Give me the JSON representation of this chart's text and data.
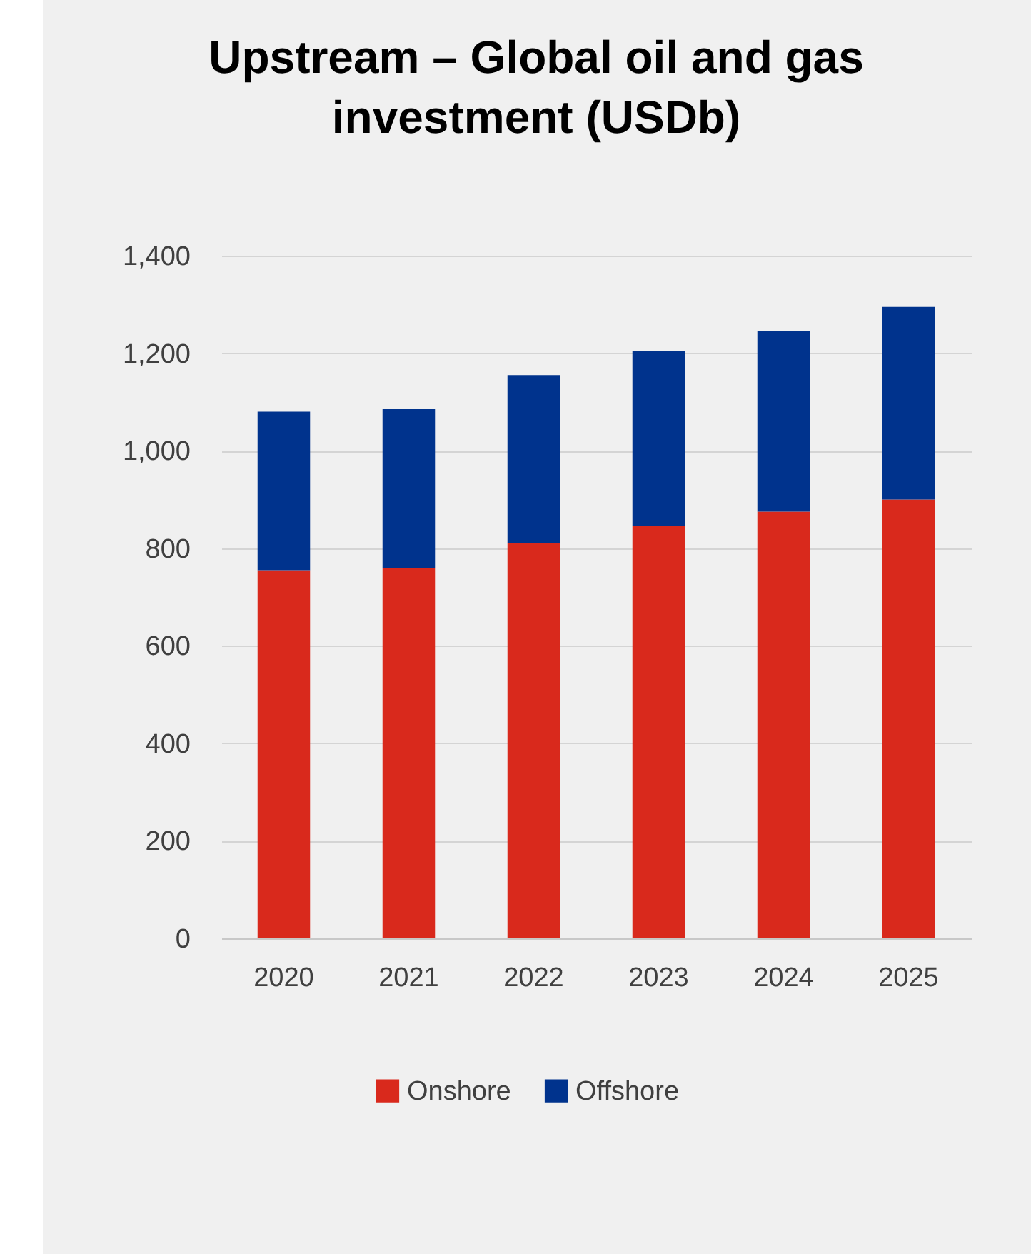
{
  "chart_data": {
    "type": "bar",
    "title": [
      "Upstream – Global oil and gas",
      "investment (USDb)"
    ],
    "categories": [
      "2020",
      "2021",
      "2022",
      "2023",
      "2024",
      "2025"
    ],
    "stacked": true,
    "series": [
      {
        "name": "Onshore",
        "color": "#d9291c",
        "values": [
          755,
          760,
          810,
          845,
          875,
          900
        ]
      },
      {
        "name": "Offshore",
        "color": "#00338d",
        "values": [
          325,
          325,
          345,
          360,
          370,
          395
        ]
      }
    ],
    "ylim": [
      0,
      1400
    ],
    "yticks": [
      0,
      200,
      400,
      600,
      800,
      {
        "value": 1000,
        "label": "1,000"
      },
      {
        "value": 1200,
        "label": "1,200"
      },
      {
        "value": 1400,
        "label": "1,400"
      }
    ],
    "grid": "y",
    "legend": "bottom"
  }
}
